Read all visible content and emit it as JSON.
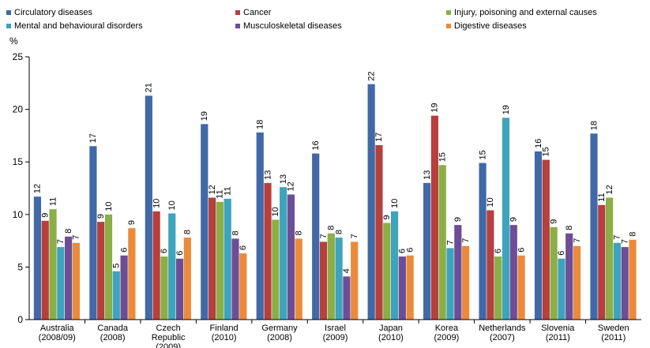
{
  "chart_data": {
    "type": "bar",
    "ylabel": "%",
    "ylim": [
      0,
      25
    ],
    "yticks": [
      0,
      5,
      10,
      15,
      20,
      25
    ],
    "grid": false,
    "legend_position": "top",
    "categories": [
      [
        "Australia",
        "(2008/09)"
      ],
      [
        "Canada",
        "(2008)"
      ],
      [
        "Czech",
        "Republic",
        "(2009)"
      ],
      [
        "Finland",
        "(2010)"
      ],
      [
        "Germany",
        "(2008)"
      ],
      [
        "Israel",
        "(2009)"
      ],
      [
        "Japan",
        "(2010)"
      ],
      [
        "Korea",
        "(2009)"
      ],
      [
        "Netherlands",
        "(2007)"
      ],
      [
        "Slovenia",
        "(2011)"
      ],
      [
        "Sweden",
        "(2011)"
      ]
    ],
    "series": [
      {
        "name": "Circulatory diseases",
        "color": "#4169A8",
        "values": [
          11.7,
          16.5,
          21.3,
          18.6,
          17.8,
          15.8,
          22.4,
          13.0,
          14.9,
          16.0,
          17.7
        ],
        "labels": [
          "12",
          "17",
          "21",
          "19",
          "18",
          "16",
          "22",
          "13",
          "15",
          "16",
          "18"
        ]
      },
      {
        "name": "Cancer",
        "color": "#B5403D",
        "values": [
          9.4,
          9.3,
          10.3,
          11.6,
          13.0,
          7.4,
          16.6,
          19.4,
          10.4,
          15.2,
          10.9
        ],
        "labels": [
          "9",
          "9",
          "10",
          "12",
          "13",
          "7",
          "17",
          "19",
          "10",
          "15",
          "11"
        ]
      },
      {
        "name": "Injury, poisoning and external causes",
        "color": "#8BAE46",
        "values": [
          10.5,
          10.0,
          6.0,
          11.2,
          9.5,
          8.2,
          9.2,
          14.7,
          6.0,
          8.8,
          11.6
        ],
        "labels": [
          "11",
          "10",
          "6",
          "11",
          "10",
          "8",
          "9",
          "15",
          "6",
          "9",
          "12"
        ]
      },
      {
        "name": "Mental and behavioural disorders",
        "color": "#3EA3BC",
        "values": [
          6.9,
          4.6,
          10.1,
          11.5,
          12.6,
          7.8,
          10.3,
          6.8,
          19.2,
          5.8,
          7.3
        ],
        "labels": [
          "7",
          "5",
          "10",
          "11",
          "13",
          "8",
          "10",
          "7",
          "19",
          "6",
          "7"
        ]
      },
      {
        "name": "Musculoskeletal diseases",
        "color": "#6D4E96",
        "values": [
          7.9,
          6.1,
          5.8,
          7.7,
          11.9,
          4.1,
          6.0,
          9.0,
          9.0,
          8.2,
          6.9
        ],
        "labels": [
          "8",
          "6",
          "6",
          "8",
          "12",
          "4",
          "6",
          "9",
          "9",
          "8",
          "7"
        ]
      },
      {
        "name": "Digestive diseases",
        "color": "#EB8A3A",
        "values": [
          7.3,
          8.7,
          7.8,
          6.3,
          7.7,
          7.4,
          6.1,
          7.0,
          6.1,
          7.0,
          7.6
        ],
        "labels": [
          "7",
          "9",
          "8",
          "6",
          "8",
          "7",
          "6",
          "7",
          "6",
          "7",
          "8"
        ]
      }
    ]
  }
}
